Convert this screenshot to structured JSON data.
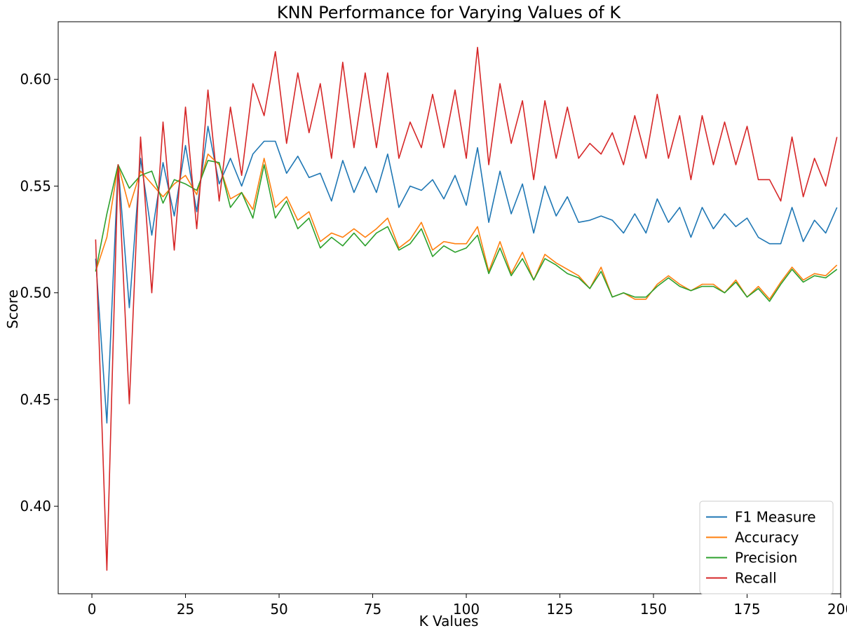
{
  "chart_data": {
    "type": "line",
    "title": "KNN Performance for Varying Values of K",
    "xlabel": "K Values",
    "ylabel": "Score",
    "xlim": [
      -9,
      200
    ],
    "ylim": [
      0.359,
      0.627
    ],
    "xticks": [
      0,
      25,
      50,
      75,
      100,
      125,
      150,
      175,
      200
    ],
    "yticks": [
      0.4,
      0.45,
      0.5,
      0.55,
      0.6
    ],
    "xtick_labels": [
      "0",
      "25",
      "50",
      "75",
      "100",
      "125",
      "150",
      "175",
      "200"
    ],
    "ytick_labels": [
      "0.40",
      "0.45",
      "0.50",
      "0.55",
      "0.60"
    ],
    "grid": false,
    "legend_position": "lower-right",
    "x": [
      1,
      4,
      7,
      10,
      13,
      16,
      19,
      22,
      25,
      28,
      31,
      34,
      37,
      40,
      43,
      46,
      49,
      52,
      55,
      58,
      61,
      64,
      67,
      70,
      73,
      76,
      79,
      82,
      85,
      88,
      91,
      94,
      97,
      100,
      103,
      106,
      109,
      112,
      115,
      118,
      121,
      124,
      127,
      130,
      133,
      136,
      139,
      142,
      145,
      148,
      151,
      154,
      157,
      160,
      163,
      166,
      169,
      172,
      175,
      178,
      181,
      184,
      187,
      190,
      193,
      196,
      199
    ],
    "series": [
      {
        "name": "F1 Measure",
        "color": "#1f77b4",
        "values": [
          0.516,
          0.439,
          0.56,
          0.493,
          0.563,
          0.527,
          0.561,
          0.536,
          0.569,
          0.538,
          0.578,
          0.551,
          0.563,
          0.55,
          0.565,
          0.571,
          0.571,
          0.556,
          0.564,
          0.554,
          0.556,
          0.543,
          0.562,
          0.547,
          0.559,
          0.547,
          0.565,
          0.54,
          0.55,
          0.548,
          0.553,
          0.544,
          0.555,
          0.541,
          0.568,
          0.533,
          0.557,
          0.537,
          0.551,
          0.528,
          0.55,
          0.536,
          0.545,
          0.533,
          0.534,
          0.536,
          0.534,
          0.528,
          0.537,
          0.528,
          0.544,
          0.533,
          0.54,
          0.526,
          0.54,
          0.53,
          0.537,
          0.531,
          0.535,
          0.526,
          0.523,
          0.523,
          0.54,
          0.524,
          0.534,
          0.528,
          0.54
        ]
      },
      {
        "name": "Accuracy",
        "color": "#ff7f0e",
        "values": [
          0.51,
          0.526,
          0.56,
          0.54,
          0.557,
          0.551,
          0.545,
          0.551,
          0.555,
          0.546,
          0.565,
          0.56,
          0.544,
          0.547,
          0.539,
          0.563,
          0.54,
          0.545,
          0.534,
          0.538,
          0.524,
          0.528,
          0.526,
          0.53,
          0.526,
          0.53,
          0.535,
          0.521,
          0.525,
          0.533,
          0.52,
          0.524,
          0.523,
          0.523,
          0.531,
          0.51,
          0.524,
          0.509,
          0.519,
          0.506,
          0.518,
          0.514,
          0.511,
          0.508,
          0.502,
          0.512,
          0.498,
          0.5,
          0.497,
          0.497,
          0.504,
          0.508,
          0.504,
          0.501,
          0.504,
          0.504,
          0.5,
          0.506,
          0.498,
          0.503,
          0.497,
          0.505,
          0.512,
          0.506,
          0.509,
          0.508,
          0.513
        ]
      },
      {
        "name": "Precision",
        "color": "#2ca02c",
        "values": [
          0.51,
          0.537,
          0.56,
          0.549,
          0.555,
          0.557,
          0.542,
          0.553,
          0.551,
          0.548,
          0.562,
          0.561,
          0.54,
          0.547,
          0.535,
          0.56,
          0.535,
          0.543,
          0.53,
          0.535,
          0.521,
          0.526,
          0.522,
          0.528,
          0.522,
          0.528,
          0.531,
          0.52,
          0.523,
          0.53,
          0.517,
          0.522,
          0.519,
          0.521,
          0.527,
          0.509,
          0.521,
          0.508,
          0.516,
          0.506,
          0.516,
          0.513,
          0.509,
          0.507,
          0.502,
          0.51,
          0.498,
          0.5,
          0.498,
          0.498,
          0.503,
          0.507,
          0.503,
          0.501,
          0.503,
          0.503,
          0.5,
          0.505,
          0.498,
          0.502,
          0.496,
          0.504,
          0.511,
          0.505,
          0.508,
          0.507,
          0.511
        ]
      },
      {
        "name": "Recall",
        "color": "#d62728",
        "values": [
          0.525,
          0.37,
          0.56,
          0.448,
          0.573,
          0.5,
          0.58,
          0.52,
          0.587,
          0.53,
          0.595,
          0.543,
          0.587,
          0.555,
          0.598,
          0.583,
          0.613,
          0.57,
          0.603,
          0.575,
          0.598,
          0.563,
          0.608,
          0.568,
          0.603,
          0.568,
          0.603,
          0.563,
          0.58,
          0.568,
          0.593,
          0.568,
          0.595,
          0.563,
          0.615,
          0.56,
          0.598,
          0.57,
          0.59,
          0.553,
          0.59,
          0.563,
          0.587,
          0.563,
          0.57,
          0.565,
          0.575,
          0.56,
          0.583,
          0.563,
          0.593,
          0.563,
          0.583,
          0.553,
          0.583,
          0.56,
          0.58,
          0.56,
          0.578,
          0.553,
          0.553,
          0.543,
          0.573,
          0.545,
          0.563,
          0.55,
          0.573
        ]
      }
    ]
  }
}
